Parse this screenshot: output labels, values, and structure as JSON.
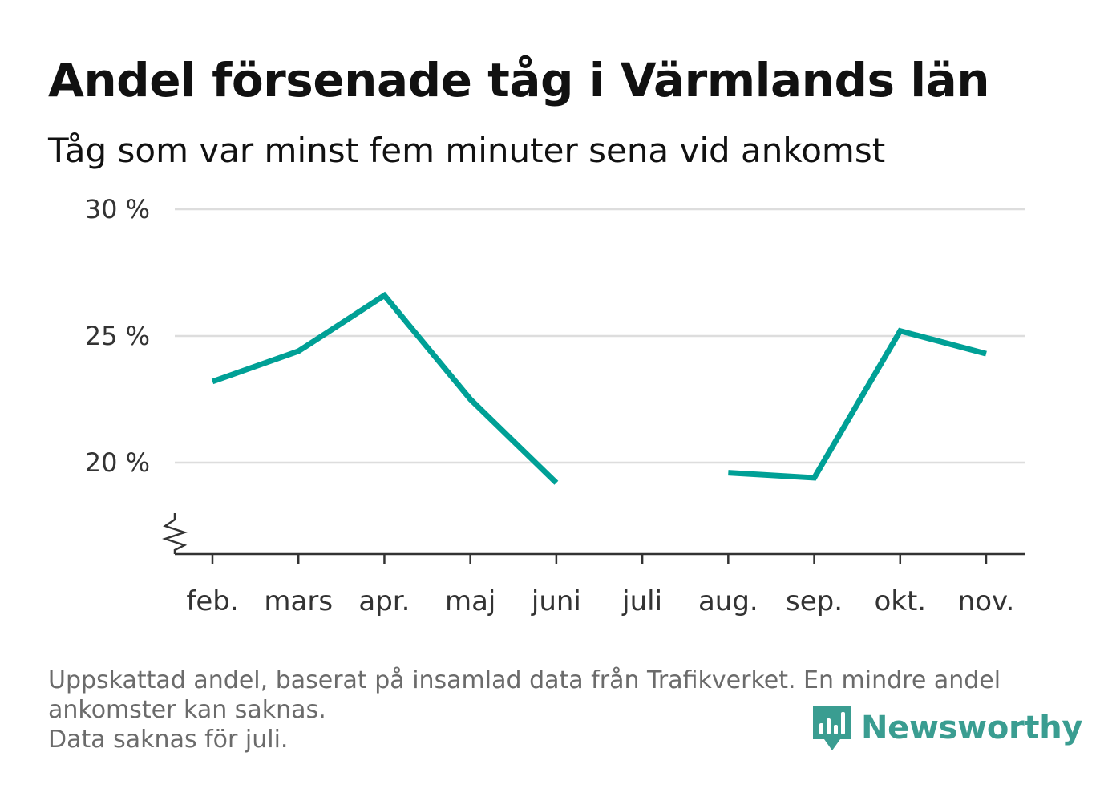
{
  "title": "Andel försenade tåg i Värmlands län",
  "subtitle": "Tåg som var minst fem minuter sena vid ankomst",
  "footnote": {
    "line1": "Uppskattad andel, baserat på insamlad data från Trafikverket. En mindre andel",
    "line2": "ankomster kan saknas.",
    "line3": "Data saknas för juli."
  },
  "brand": {
    "name": "Newsworthy",
    "icon": "newsworthy-logo-icon",
    "color": "#3a9d91"
  },
  "colors": {
    "line": "#00a096",
    "grid": "#dddddd",
    "axis": "#333333",
    "text": "#333333"
  },
  "chart_data": {
    "type": "line",
    "categories": [
      "feb.",
      "mars",
      "apr.",
      "maj",
      "juni",
      "juli",
      "aug.",
      "sep.",
      "okt.",
      "nov."
    ],
    "series": [
      {
        "values": [
          23.2,
          24.4,
          26.6,
          22.5,
          19.2,
          null,
          19.6,
          19.4,
          25.2,
          24.3
        ]
      }
    ],
    "y_ticks": [
      {
        "value": 20,
        "label": "20 %"
      },
      {
        "value": 25,
        "label": "25 %"
      },
      {
        "value": 30,
        "label": "30 %"
      }
    ],
    "ylim": [
      16.5,
      30
    ],
    "axis_break": true,
    "grid": true,
    "xlabel": "",
    "ylabel": ""
  }
}
